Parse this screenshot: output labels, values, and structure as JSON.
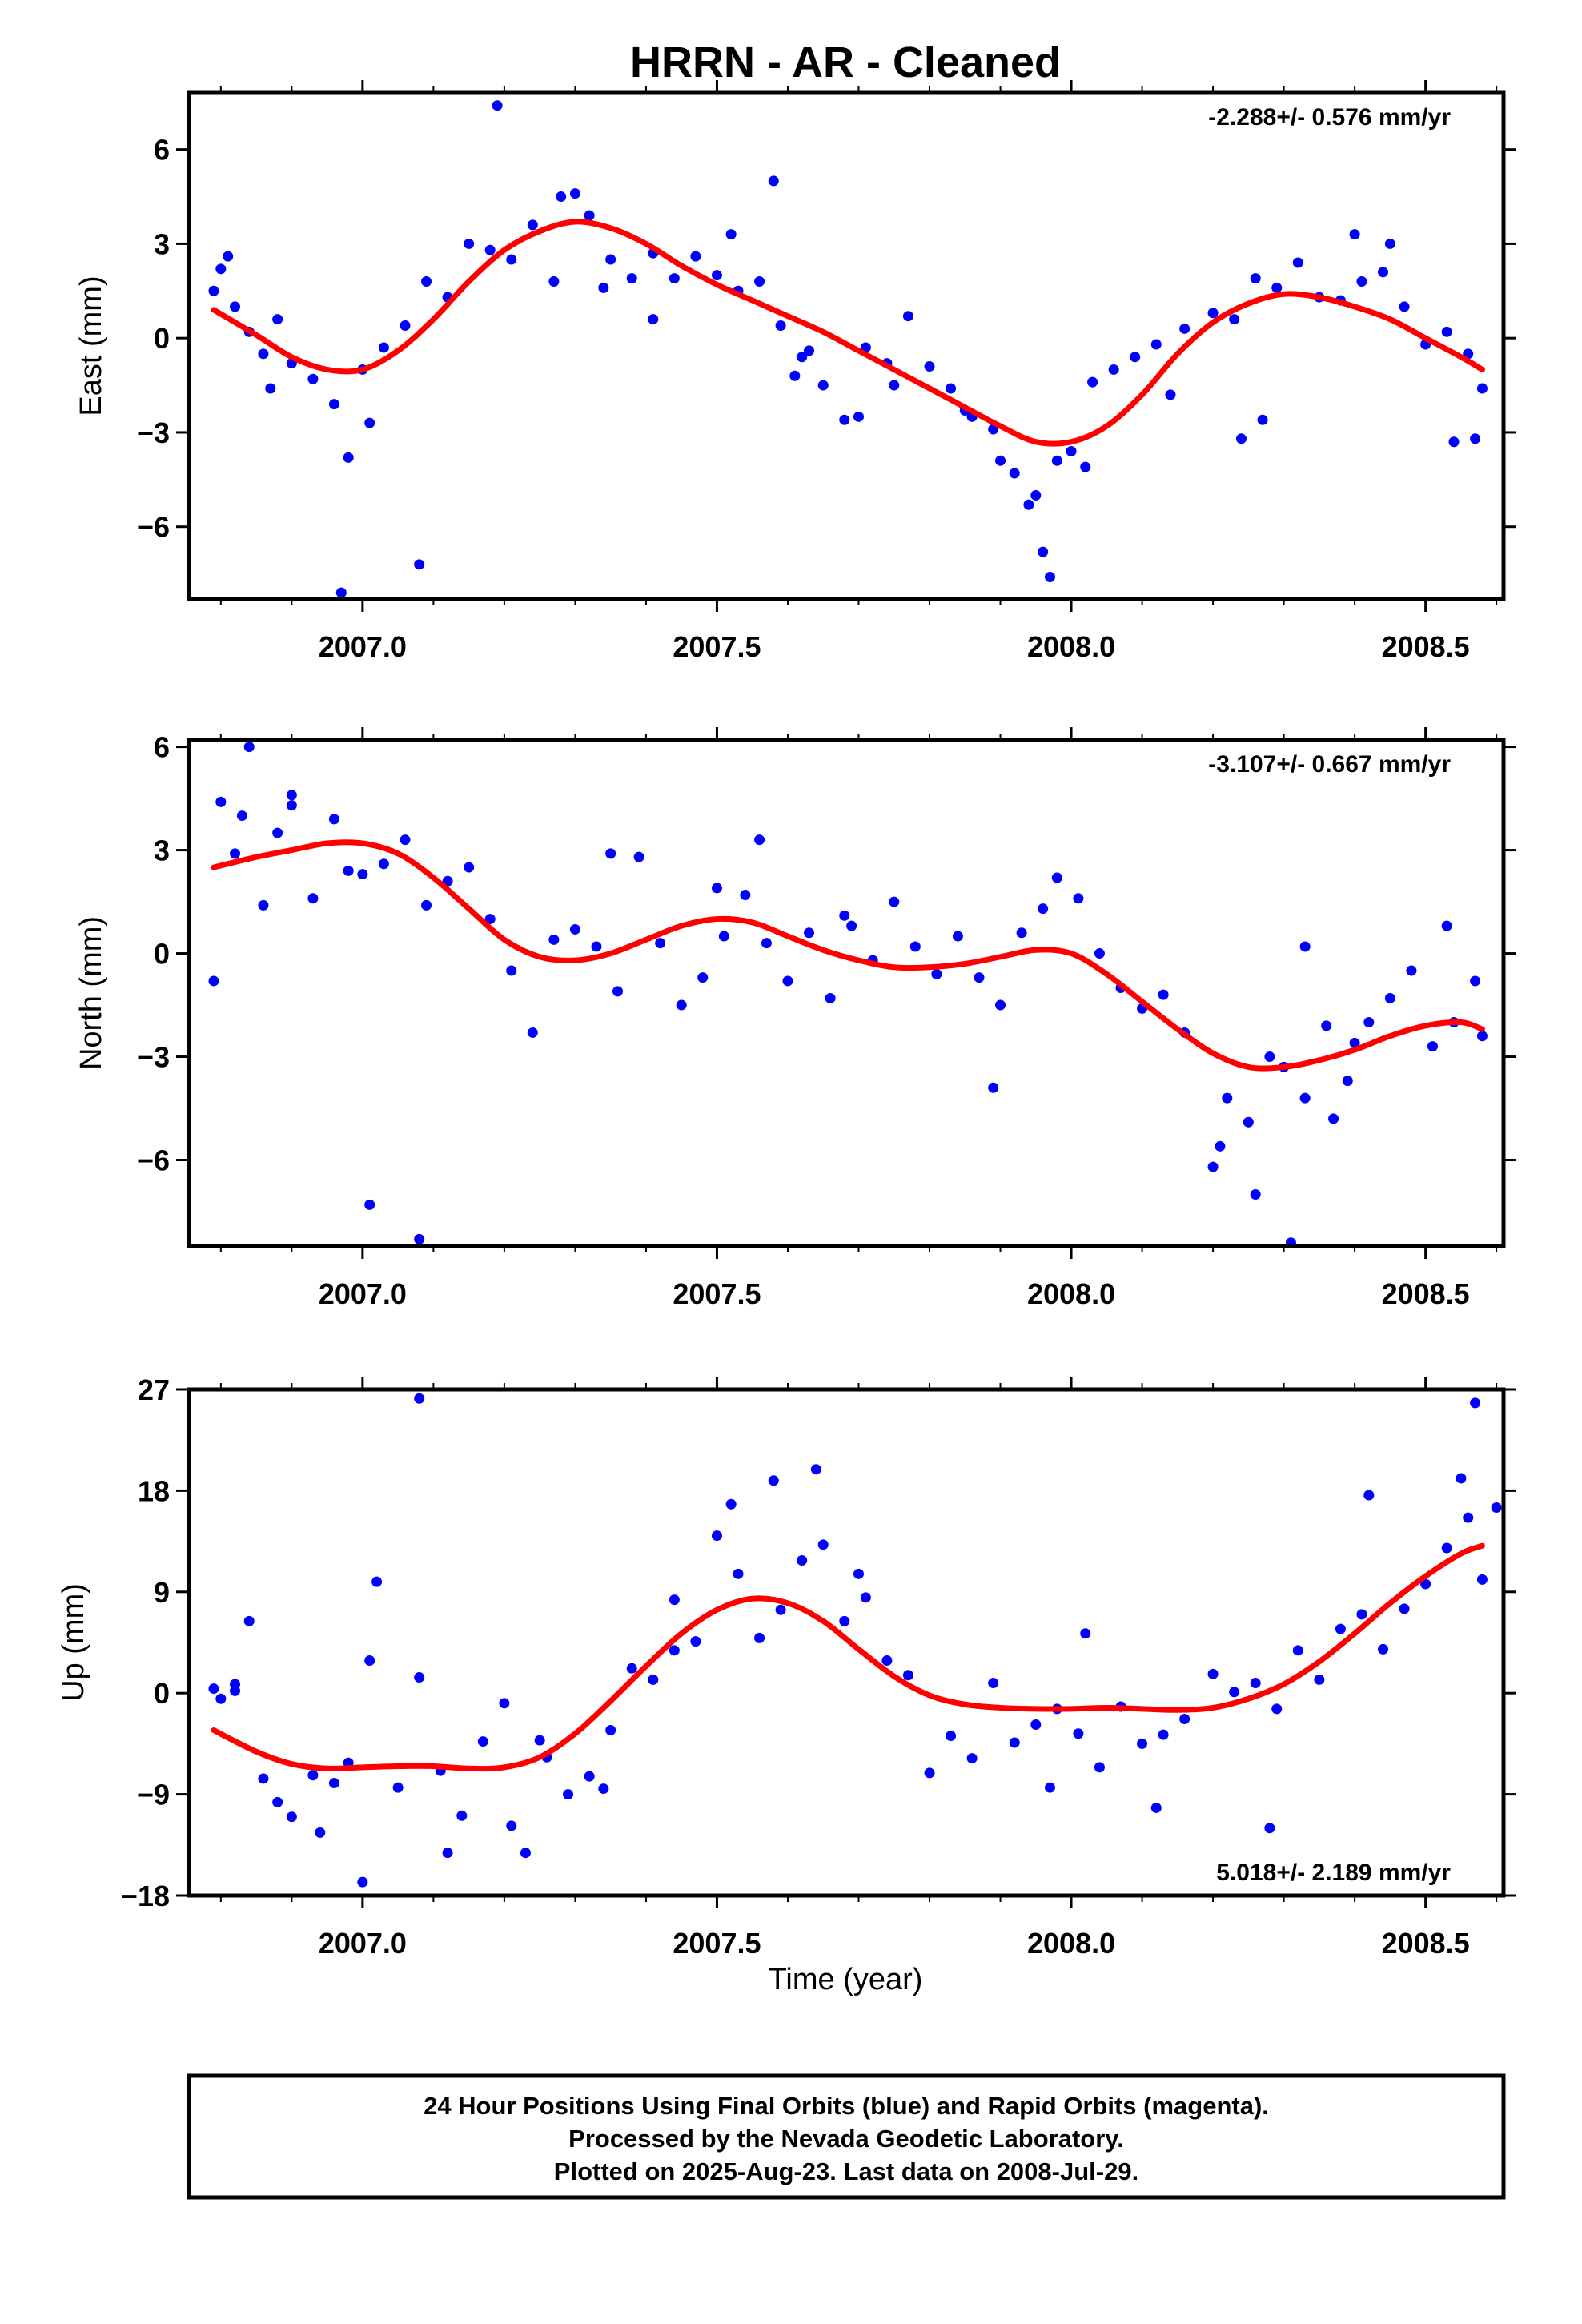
{
  "title": "HRRN  - AR - Cleaned",
  "footer": {
    "lines": [
      "24 Hour Positions Using Final Orbits (blue) and Rapid Orbits (magenta).",
      "Processed by the Nevada Geodetic Laboratory.",
      "Plotted on 2025-Aug-23. Last data on 2008-Jul-29."
    ]
  },
  "colors": {
    "points": "#0000ff",
    "fit": "#ff0000",
    "frame": "#000000"
  },
  "chart_data": [
    {
      "type": "scatter",
      "name": "east",
      "ylabel": "East (mm)",
      "xlabel": "",
      "rate": "-2.288+/- 0.576 mm/yr",
      "rate_position": "top-right",
      "xlim": [
        2006.755,
        2008.61
      ],
      "ylim": [
        -8.3,
        7.8
      ],
      "xticks": [
        2007.0,
        2007.5,
        2008.0,
        2008.5
      ],
      "xtick_labels": [
        "2007.0",
        "2007.5",
        "2008.0",
        "2008.5"
      ],
      "yticks": [
        6,
        3,
        0,
        -3,
        -6
      ],
      "ytick_labels": [
        "6",
        "3",
        "0",
        "−3",
        "−6"
      ],
      "fit_curve": {
        "x": [
          2006.79,
          2006.85,
          2006.9,
          2006.95,
          2007.0,
          2007.05,
          2007.1,
          2007.15,
          2007.2,
          2007.25,
          2007.3,
          2007.35,
          2007.4,
          2007.45,
          2007.5,
          2007.55,
          2007.6,
          2007.65,
          2007.7,
          2007.75,
          2007.8,
          2007.85,
          2007.9,
          2007.95,
          2008.0,
          2008.05,
          2008.1,
          2008.15,
          2008.2,
          2008.25,
          2008.3,
          2008.35,
          2008.4,
          2008.45,
          2008.5,
          2008.55,
          2008.58
        ],
        "y": [
          0.9,
          0.1,
          -0.6,
          -1.0,
          -1.0,
          -0.4,
          0.6,
          1.8,
          2.8,
          3.4,
          3.7,
          3.5,
          3.0,
          2.3,
          1.7,
          1.2,
          0.7,
          0.2,
          -0.4,
          -1.0,
          -1.6,
          -2.2,
          -2.8,
          -3.3,
          -3.3,
          -2.8,
          -1.8,
          -0.5,
          0.5,
          1.1,
          1.4,
          1.3,
          1.0,
          0.6,
          0.0,
          -0.6,
          -1.0
        ]
      },
      "points": {
        "x": [
          2006.79,
          2006.8,
          2006.82,
          2006.84,
          2006.86,
          2006.88,
          2006.9,
          2006.93,
          2006.96,
          2006.98,
          2007.0,
          2007.03,
          2007.06,
          2007.09,
          2007.12,
          2007.15,
          2007.18,
          2007.21,
          2007.24,
          2007.27,
          2007.3,
          2007.32,
          2007.35,
          2007.38,
          2007.41,
          2007.44,
          2007.47,
          2007.5,
          2007.53,
          2007.56,
          2007.59,
          2007.62,
          2007.65,
          2007.68,
          2007.71,
          2007.74,
          2007.77,
          2007.8,
          2007.83,
          2007.86,
          2007.89,
          2007.92,
          2007.94,
          2007.96,
          2007.98,
          2008.0,
          2008.03,
          2008.06,
          2008.09,
          2008.12,
          2008.16,
          2008.2,
          2008.23,
          2008.26,
          2008.29,
          2008.32,
          2008.35,
          2008.38,
          2008.41,
          2008.44,
          2008.47,
          2008.5,
          2008.53,
          2008.56,
          2008.58,
          2006.81,
          2006.87,
          2006.97,
          2007.01,
          2007.08,
          2007.19,
          2007.28,
          2007.34,
          2007.52,
          2007.58,
          2007.63,
          2007.7,
          2007.75,
          2007.85,
          2007.9,
          2007.95,
          2007.97,
          2008.02,
          2008.14,
          2008.27,
          2008.4,
          2008.45,
          2008.54,
          2008.57,
          2007.41,
          2007.61,
          2008.24
        ],
        "y": [
          1.5,
          2.2,
          1.0,
          0.2,
          -0.5,
          0.6,
          -0.8,
          -1.3,
          -2.1,
          -3.8,
          -1.0,
          -0.3,
          0.4,
          1.8,
          1.3,
          3.0,
          2.8,
          2.5,
          3.6,
          1.8,
          4.6,
          3.9,
          2.5,
          1.9,
          2.7,
          1.9,
          2.6,
          2.0,
          1.5,
          1.8,
          0.4,
          -0.6,
          -1.5,
          -2.6,
          -0.3,
          -0.8,
          0.7,
          -0.9,
          -1.6,
          -2.5,
          -2.9,
          -4.3,
          -5.3,
          -6.8,
          -3.9,
          -3.6,
          -1.4,
          -1.0,
          -0.6,
          -0.2,
          0.3,
          0.8,
          0.6,
          1.9,
          1.6,
          2.4,
          1.3,
          1.2,
          1.8,
          2.1,
          1.0,
          -0.2,
          0.2,
          -0.5,
          -1.6,
          2.6,
          -1.6,
          -8.1,
          -2.7,
          -7.2,
          7.4,
          4.5,
          1.6,
          3.3,
          5.0,
          -0.4,
          -2.5,
          -1.5,
          -2.3,
          -3.9,
          -5.0,
          -7.6,
          -4.1,
          -1.8,
          -2.6,
          3.3,
          3.0,
          -3.3,
          -3.2,
          0.6,
          -1.2,
          -3.2
        ]
      }
    },
    {
      "type": "scatter",
      "name": "north",
      "ylabel": "North (mm)",
      "xlabel": "",
      "rate": "-3.107+/- 0.667 mm/yr",
      "rate_position": "top-right",
      "xlim": [
        2006.755,
        2008.61
      ],
      "ylim": [
        -8.5,
        6.2
      ],
      "xticks": [
        2007.0,
        2007.5,
        2008.0,
        2008.5
      ],
      "xtick_labels": [
        "2007.0",
        "2007.5",
        "2008.0",
        "2008.5"
      ],
      "yticks": [
        6,
        3,
        0,
        -3,
        -6
      ],
      "ytick_labels": [
        "6",
        "3",
        "0",
        "−3",
        "−6"
      ],
      "fit_curve": {
        "x": [
          2006.79,
          2006.85,
          2006.9,
          2006.95,
          2007.0,
          2007.05,
          2007.1,
          2007.15,
          2007.2,
          2007.25,
          2007.3,
          2007.35,
          2007.4,
          2007.45,
          2007.5,
          2007.55,
          2007.6,
          2007.65,
          2007.7,
          2007.75,
          2007.8,
          2007.85,
          2007.9,
          2007.95,
          2008.0,
          2008.05,
          2008.1,
          2008.15,
          2008.2,
          2008.25,
          2008.3,
          2008.35,
          2008.4,
          2008.45,
          2008.5,
          2008.55,
          2008.58
        ],
        "y": [
          2.5,
          2.8,
          3.0,
          3.2,
          3.2,
          2.9,
          2.2,
          1.3,
          0.4,
          -0.1,
          -0.2,
          0.0,
          0.4,
          0.8,
          1.0,
          0.9,
          0.5,
          0.1,
          -0.2,
          -0.4,
          -0.4,
          -0.3,
          -0.1,
          0.1,
          0.0,
          -0.6,
          -1.4,
          -2.2,
          -2.9,
          -3.3,
          -3.3,
          -3.1,
          -2.8,
          -2.4,
          -2.1,
          -2.0,
          -2.2
        ]
      },
      "points": {
        "x": [
          2006.79,
          2006.8,
          2006.82,
          2006.84,
          2006.86,
          2006.88,
          2006.9,
          2006.93,
          2006.96,
          2006.98,
          2007.0,
          2007.03,
          2007.06,
          2007.09,
          2007.12,
          2007.15,
          2007.18,
          2007.21,
          2007.24,
          2007.27,
          2007.3,
          2007.33,
          2007.36,
          2007.39,
          2007.42,
          2007.45,
          2007.48,
          2007.51,
          2007.54,
          2007.57,
          2007.6,
          2007.63,
          2007.66,
          2007.69,
          2007.72,
          2007.75,
          2007.78,
          2007.81,
          2007.84,
          2007.87,
          2007.9,
          2007.93,
          2007.96,
          2007.98,
          2008.01,
          2008.04,
          2008.07,
          2008.1,
          2008.13,
          2008.16,
          2008.2,
          2008.22,
          2008.25,
          2008.28,
          2008.3,
          2008.33,
          2008.36,
          2008.39,
          2008.42,
          2008.45,
          2008.48,
          2008.51,
          2008.54,
          2008.57,
          2008.58,
          2006.83,
          2006.9,
          2007.01,
          2007.08,
          2007.5,
          2007.68,
          2007.89,
          2008.21,
          2008.26,
          2008.33,
          2008.37,
          2008.4,
          2008.53,
          2007.35,
          2007.56,
          2008.31
        ],
        "y": [
          -0.8,
          4.4,
          2.9,
          6.0,
          1.4,
          3.5,
          4.6,
          1.6,
          3.9,
          2.4,
          2.3,
          2.6,
          3.3,
          1.4,
          2.1,
          2.5,
          1.0,
          -0.5,
          -2.3,
          0.4,
          0.7,
          0.2,
          -1.1,
          2.8,
          0.3,
          -1.5,
          -0.7,
          0.5,
          1.7,
          0.3,
          -0.8,
          0.6,
          -1.3,
          0.8,
          -0.2,
          1.5,
          0.2,
          -0.6,
          0.5,
          -0.7,
          -1.5,
          0.6,
          1.3,
          2.2,
          1.6,
          0.0,
          -1.0,
          -1.6,
          -1.2,
          -2.3,
          -6.2,
          -4.2,
          -4.9,
          -3.0,
          -3.3,
          -4.2,
          -2.1,
          -3.7,
          -2.0,
          -1.3,
          -0.5,
          -2.7,
          -2.0,
          -0.8,
          -2.4,
          4.0,
          4.3,
          -7.3,
          -8.3,
          1.9,
          1.1,
          -3.9,
          -5.6,
          -7.0,
          0.2,
          -4.8,
          -2.6,
          0.8,
          2.9,
          3.3,
          -8.4
        ]
      }
    },
    {
      "type": "scatter",
      "name": "up",
      "ylabel": "Up (mm)",
      "xlabel": "Time (year)",
      "rate": "5.018+/- 2.189 mm/yr",
      "rate_position": "bottom-right",
      "xlim": [
        2006.755,
        2008.61
      ],
      "ylim": [
        -18,
        27
      ],
      "xticks": [
        2007.0,
        2007.5,
        2008.0,
        2008.5
      ],
      "xtick_labels": [
        "2007.0",
        "2007.5",
        "2008.0",
        "2008.5"
      ],
      "yticks": [
        27,
        18,
        9,
        0,
        -9,
        -18
      ],
      "ytick_labels": [
        "27",
        "18",
        "9",
        "0",
        "−9",
        "−18"
      ],
      "fit_curve": {
        "x": [
          2006.79,
          2006.85,
          2006.9,
          2006.95,
          2007.0,
          2007.05,
          2007.1,
          2007.15,
          2007.2,
          2007.25,
          2007.3,
          2007.35,
          2007.4,
          2007.45,
          2007.5,
          2007.55,
          2007.6,
          2007.65,
          2007.7,
          2007.75,
          2007.8,
          2007.85,
          2007.9,
          2007.95,
          2008.0,
          2008.05,
          2008.1,
          2008.15,
          2008.2,
          2008.25,
          2008.3,
          2008.35,
          2008.4,
          2008.45,
          2008.5,
          2008.55,
          2008.58
        ],
        "y": [
          -3.3,
          -5.2,
          -6.3,
          -6.7,
          -6.6,
          -6.5,
          -6.5,
          -6.7,
          -6.6,
          -5.7,
          -3.6,
          -0.7,
          2.4,
          5.3,
          7.4,
          8.4,
          8.0,
          6.4,
          3.9,
          1.5,
          -0.2,
          -1.0,
          -1.3,
          -1.4,
          -1.4,
          -1.3,
          -1.4,
          -1.5,
          -1.3,
          -0.5,
          0.8,
          2.8,
          5.3,
          8.0,
          10.4,
          12.4,
          13.1
        ]
      },
      "points": {
        "x": [
          2006.79,
          2006.8,
          2006.82,
          2006.84,
          2006.86,
          2006.88,
          2006.9,
          2006.93,
          2006.96,
          2006.98,
          2007.0,
          2007.02,
          2007.05,
          2007.08,
          2007.11,
          2007.14,
          2007.17,
          2007.2,
          2007.23,
          2007.26,
          2007.29,
          2007.32,
          2007.35,
          2007.38,
          2007.41,
          2007.44,
          2007.47,
          2007.5,
          2007.53,
          2007.56,
          2007.59,
          2007.62,
          2007.65,
          2007.68,
          2007.71,
          2007.74,
          2007.77,
          2007.8,
          2007.83,
          2007.86,
          2007.89,
          2007.92,
          2007.95,
          2007.98,
          2008.01,
          2008.04,
          2008.07,
          2008.1,
          2008.13,
          2008.16,
          2008.2,
          2008.23,
          2008.26,
          2008.29,
          2008.32,
          2008.35,
          2008.38,
          2008.41,
          2008.44,
          2008.47,
          2008.5,
          2008.53,
          2008.56,
          2008.58,
          2007.01,
          2007.08,
          2007.25,
          2007.52,
          2007.58,
          2007.64,
          2007.97,
          2008.02,
          2008.12,
          2008.28,
          2008.42,
          2008.55,
          2008.57,
          2008.6,
          2006.82,
          2006.94,
          2007.12,
          2007.21,
          2007.34,
          2007.44,
          2007.7
        ],
        "y": [
          0.4,
          -0.5,
          0.8,
          6.4,
          -7.6,
          -9.7,
          -11.0,
          -7.3,
          -8.0,
          -6.2,
          -16.8,
          9.9,
          -8.4,
          1.4,
          -6.9,
          -10.9,
          -4.3,
          -0.9,
          -14.2,
          -5.7,
          -9.0,
          -7.4,
          -3.3,
          2.2,
          1.2,
          3.8,
          4.6,
          14.0,
          10.6,
          4.9,
          7.4,
          11.8,
          13.2,
          6.4,
          8.5,
          2.9,
          1.6,
          -7.1,
          -3.8,
          -5.8,
          0.9,
          -4.4,
          -2.8,
          -1.4,
          -3.6,
          -6.6,
          -1.2,
          -4.5,
          -3.7,
          -2.3,
          1.7,
          0.1,
          0.9,
          -1.4,
          3.8,
          1.2,
          5.7,
          7.0,
          3.9,
          7.5,
          9.7,
          12.9,
          15.6,
          10.1,
          2.9,
          26.2,
          -4.2,
          16.8,
          18.9,
          19.9,
          -8.4,
          5.3,
          -10.2,
          -12.0,
          17.6,
          19.1,
          25.8,
          16.5,
          0.2,
          -12.4,
          -14.2,
          -11.8,
          -8.5,
          8.3,
          10.6
        ]
      }
    }
  ]
}
